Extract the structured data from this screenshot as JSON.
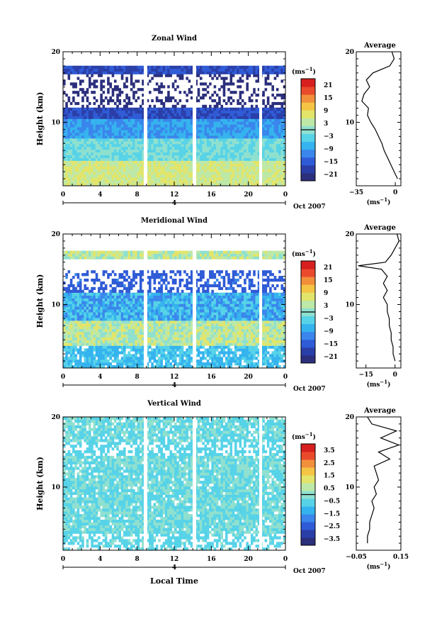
{
  "colors": {
    "scale": [
      "#2b2f7c",
      "#2a3ea8",
      "#2f5bd6",
      "#3a86ec",
      "#35b3ee",
      "#57d3e8",
      "#8fe0cf",
      "#bde8a7",
      "#e2e56a",
      "#f4c545",
      "#f28f3b",
      "#ea4a2c",
      "#d61f1e"
    ]
  },
  "common": {
    "x_ticks": [
      "0",
      "4",
      "8",
      "12",
      "16",
      "20",
      "0"
    ],
    "x_date": "Oct 2007",
    "x_day": "4",
    "y_ticks": [
      "10",
      "20"
    ],
    "y_label": "Height (km)",
    "avg_title": "Average",
    "cbar_unit": "(ms",
    "unit_exp": "−1",
    "avg_unit": "(ms",
    "avg_unit_close": ")",
    "cbar_unit_close": ")",
    "xlabel": "Local Time"
  },
  "panels": [
    {
      "title": "Zonal Wind",
      "cbar_ticks": [
        "21",
        "15",
        "9",
        "3",
        "−3",
        "−9",
        "−15",
        "−21"
      ],
      "avg_xticks": [
        "−35",
        "0"
      ]
    },
    {
      "title": "Meridional Wind",
      "cbar_ticks": [
        "21",
        "15",
        "9",
        "3",
        "−3",
        "−9",
        "−15",
        "−21"
      ],
      "avg_xticks": [
        "−15",
        "0"
      ]
    },
    {
      "title": "Vertical Wind",
      "cbar_ticks": [
        "3.5",
        "2.5",
        "1.5",
        "0.5",
        "−0.5",
        "−1.5",
        "−2.5",
        "−3.5"
      ],
      "avg_xticks": [
        "−0.05",
        "0.15"
      ]
    }
  ],
  "chart_data": [
    {
      "type": "heatmap",
      "title": "Zonal Wind",
      "ylabel": "Height (km)",
      "y_range": [
        1,
        20
      ],
      "x_range": [
        0,
        24
      ],
      "colorbar_range": [
        -21,
        21
      ],
      "colorbar_unit": "ms-1",
      "average_profile": {
        "title": "Average",
        "xlim": [
          -35,
          5
        ],
        "height": [
          2,
          3,
          4,
          5,
          6,
          7,
          8,
          9,
          10,
          11,
          12,
          13,
          14,
          15,
          16,
          17,
          18,
          19,
          20
        ],
        "values": [
          2,
          -1,
          -4,
          -7,
          -10,
          -12,
          -15,
          -18,
          -22,
          -25,
          -24,
          -30,
          -28,
          -23,
          -26,
          -20,
          -5,
          -1,
          -3
        ]
      }
    },
    {
      "type": "heatmap",
      "title": "Meridional Wind",
      "ylabel": "Height (km)",
      "y_range": [
        1,
        20
      ],
      "x_range": [
        0,
        24
      ],
      "colorbar_range": [
        -21,
        21
      ],
      "colorbar_unit": "ms-1",
      "average_profile": {
        "title": "Average",
        "xlim": [
          -20,
          3
        ],
        "height": [
          2,
          3,
          4,
          5,
          6,
          7,
          8,
          9,
          10,
          11,
          12,
          13,
          14,
          15,
          15.5,
          16,
          17,
          18,
          19,
          20
        ],
        "values": [
          0,
          -1,
          -1,
          -2,
          -2,
          -3,
          -3,
          -4,
          -4,
          -6,
          -4,
          -6,
          -4,
          -7,
          -19,
          -5,
          -2,
          0,
          2,
          1
        ]
      }
    },
    {
      "type": "heatmap",
      "title": "Vertical Wind",
      "ylabel": "Height (km)",
      "y_range": [
        1,
        20
      ],
      "x_range": [
        0,
        24
      ],
      "colorbar_range": [
        -3.5,
        3.5
      ],
      "colorbar_unit": "ms-1",
      "average_profile": {
        "title": "Average",
        "xlim": [
          -0.05,
          0.15
        ],
        "height": [
          2,
          3,
          4,
          5,
          6,
          7,
          8,
          9,
          10,
          11,
          12,
          13,
          14,
          15,
          16,
          17,
          18,
          19,
          20
        ],
        "values": [
          0.0,
          0.0,
          0.01,
          0.01,
          0.02,
          0.03,
          0.02,
          0.04,
          0.03,
          0.05,
          0.04,
          0.03,
          0.1,
          0.05,
          0.14,
          0.06,
          0.13,
          0.02,
          0.0
        ]
      }
    }
  ]
}
